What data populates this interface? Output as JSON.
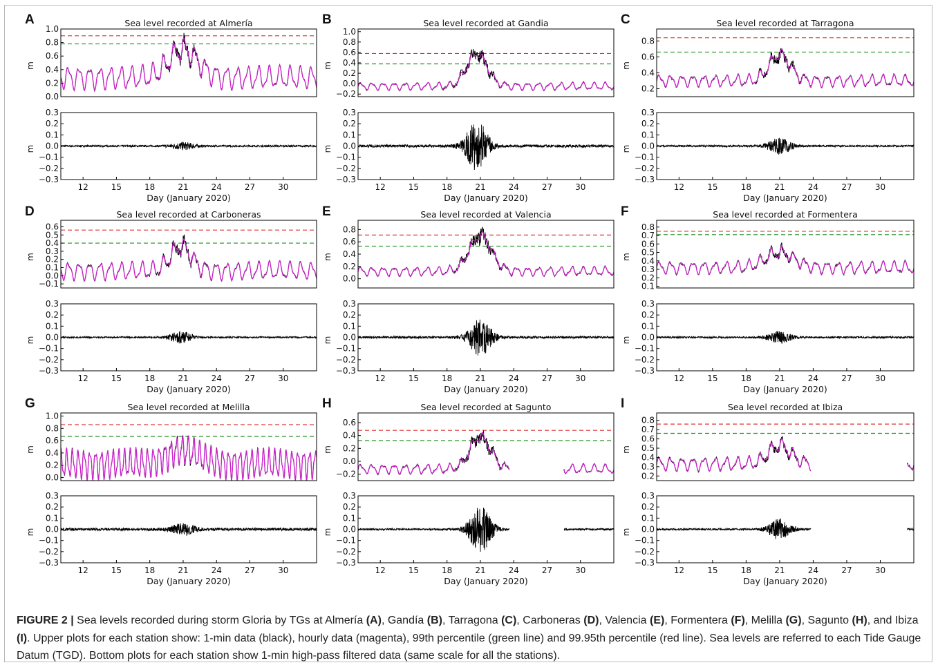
{
  "figure": {
    "caption": {
      "label": "FIGURE 2 |",
      "segments": [
        {
          "t": " Sea levels recorded during storm Gloria by TGs at Almería "
        },
        {
          "t": "(A)",
          "b": true
        },
        {
          "t": ", Gandía "
        },
        {
          "t": "(B)",
          "b": true
        },
        {
          "t": ", Tarragona "
        },
        {
          "t": "(C)",
          "b": true
        },
        {
          "t": ", Carboneras "
        },
        {
          "t": "(D)",
          "b": true
        },
        {
          "t": ", Valencia "
        },
        {
          "t": "(E)",
          "b": true
        },
        {
          "t": ", Formentera "
        },
        {
          "t": "(F)",
          "b": true
        },
        {
          "t": ", Melilla "
        },
        {
          "t": "(G)",
          "b": true
        },
        {
          "t": ", Sagunto "
        },
        {
          "t": "(H)",
          "b": true
        },
        {
          "t": ", and Ibiza "
        },
        {
          "t": "(I)",
          "b": true
        },
        {
          "t": ". Upper plots for each station show: 1-min data (black), hourly data (magenta), 99th percentile (green line) and 99.95th percentile (red line). Sea levels are referred to each Tide Gauge Datum (TGD). Bottom plots for each station show 1-min high-pass filtered data (same scale for all the stations)."
        }
      ]
    },
    "colors": {
      "raw": "#000000",
      "hourly": "#cc22cc",
      "p99": "#1f8f1f",
      "p9995": "#e03030"
    }
  },
  "chart_data": [
    {
      "panel": "A",
      "type": "line",
      "title": "Sea level recorded at Almería",
      "ylabel": "m",
      "yticks": [
        "1.0",
        "0.8",
        "0.6",
        "0.4",
        "0.2",
        "0.0"
      ],
      "ylim": [
        0,
        1.0
      ],
      "xlim": [
        10,
        33
      ],
      "p99": 0.78,
      "p9995": 0.9,
      "base": 0.28,
      "amp": 0.14,
      "period": 0.95,
      "surge_peak": 0.42,
      "surge_center": 21,
      "surge_width": 1.8,
      "gap": null,
      "filtered": {
        "ylabel": "m",
        "yticks": [
          "0.3",
          "0.2",
          "0.1",
          "0.0",
          "−0.1",
          "−0.2",
          "−0.3"
        ],
        "ylim": [
          -0.3,
          0.3
        ],
        "noise": 0.008,
        "storm_amp": 0.03,
        "xticks": [
          "12",
          "15",
          "18",
          "21",
          "24",
          "27",
          "30"
        ],
        "xlabel": "Day (January 2020)"
      }
    },
    {
      "panel": "B",
      "type": "line",
      "title": "Sea level recorded at Gandia",
      "ylabel": "m",
      "yticks": [
        "1.0",
        "0.8",
        "0.6",
        "0.4",
        "0.2",
        "0.0",
        "−0.2"
      ],
      "ylim": [
        -0.25,
        1.05
      ],
      "xlim": [
        10,
        33
      ],
      "p99": 0.38,
      "p9995": 0.58,
      "base": -0.05,
      "amp": 0.06,
      "period": 1.0,
      "surge_peak": 0.62,
      "surge_center": 20.7,
      "surge_width": 1.3,
      "gap": null,
      "filtered": {
        "ylabel": "m",
        "yticks": [
          "0.3",
          "0.2",
          "0.1",
          "0.0",
          "−0.1",
          "−0.2",
          "−0.3"
        ],
        "ylim": [
          -0.3,
          0.3
        ],
        "noise": 0.012,
        "storm_amp": 0.22,
        "xticks": [
          "12",
          "15",
          "18",
          "21",
          "24",
          "27",
          "30"
        ],
        "xlabel": "Day (January 2020)"
      }
    },
    {
      "panel": "C",
      "type": "line",
      "title": "Sea level recorded at Tarragona",
      "ylabel": "m",
      "yticks": [
        "0.8",
        "0.6",
        "0.4",
        "0.2"
      ],
      "ylim": [
        0.1,
        0.95
      ],
      "xlim": [
        10,
        33
      ],
      "p99": 0.66,
      "p9995": 0.84,
      "base": 0.3,
      "amp": 0.06,
      "period": 1.0,
      "surge_peak": 0.33,
      "surge_center": 21,
      "surge_width": 1.3,
      "gap": null,
      "filtered": {
        "ylabel": "m",
        "yticks": [
          "0.3",
          "0.2",
          "0.1",
          "0.0",
          "−0.1",
          "−0.2",
          "−0.3"
        ],
        "ylim": [
          -0.3,
          0.3
        ],
        "noise": 0.008,
        "storm_amp": 0.07,
        "xticks": [
          "12",
          "15",
          "18",
          "21",
          "24",
          "27",
          "30"
        ],
        "xlabel": "Day (January 2020)"
      }
    },
    {
      "panel": "D",
      "type": "line",
      "title": "Sea level recorded at Carboneras",
      "ylabel": "m",
      "yticks": [
        "0.6",
        "0.5",
        "0.4",
        "0.3",
        "0.2",
        "0.1",
        "0.0",
        "−0.1"
      ],
      "ylim": [
        -0.15,
        0.68
      ],
      "xlim": [
        10,
        33
      ],
      "p99": 0.4,
      "p9995": 0.56,
      "base": 0.06,
      "amp": 0.09,
      "period": 0.95,
      "surge_peak": 0.3,
      "surge_center": 20.8,
      "surge_width": 1.3,
      "gap": null,
      "filtered": {
        "ylabel": "m",
        "yticks": [
          "0.3",
          "0.2",
          "0.1",
          "0.0",
          "−0.1",
          "−0.2",
          "−0.3"
        ],
        "ylim": [
          -0.3,
          0.3
        ],
        "noise": 0.007,
        "storm_amp": 0.05,
        "xticks": [
          "12",
          "15",
          "18",
          "21",
          "24",
          "27",
          "30"
        ],
        "xlabel": "Day (January 2020)"
      }
    },
    {
      "panel": "E",
      "type": "line",
      "title": "Sea level recorded at Valencia",
      "ylabel": "m",
      "yticks": [
        "0.8",
        "0.6",
        "0.4",
        "0.2",
        "0.0"
      ],
      "ylim": [
        -0.15,
        0.95
      ],
      "xlim": [
        10,
        33
      ],
      "p99": 0.53,
      "p9995": 0.71,
      "base": 0.12,
      "amp": 0.06,
      "period": 1.0,
      "surge_peak": 0.58,
      "surge_center": 21,
      "surge_width": 1.4,
      "gap": null,
      "filtered": {
        "ylabel": "m",
        "yticks": [
          "0.3",
          "0.2",
          "0.1",
          "0.0",
          "−0.1",
          "−0.2",
          "−0.3"
        ],
        "ylim": [
          -0.3,
          0.3
        ],
        "noise": 0.01,
        "storm_amp": 0.16,
        "xticks": [
          "12",
          "15",
          "18",
          "21",
          "24",
          "27",
          "30"
        ],
        "xlabel": "Day (January 2020)"
      }
    },
    {
      "panel": "F",
      "type": "line",
      "title": "Sea level recorded at Formentera",
      "ylabel": "m",
      "yticks": [
        "0.8",
        "0.7",
        "0.6",
        "0.5",
        "0.4",
        "0.3",
        "0.2",
        "0.1"
      ],
      "ylim": [
        0.08,
        0.88
      ],
      "xlim": [
        10,
        33
      ],
      "p99": 0.71,
      "p9995": 0.75,
      "base": 0.32,
      "amp": 0.06,
      "period": 1.0,
      "surge_peak": 0.18,
      "surge_center": 21,
      "surge_width": 1.8,
      "gap": null,
      "filtered": {
        "ylabel": "m",
        "yticks": [
          "0.3",
          "0.2",
          "0.1",
          "0.0",
          "−0.1",
          "−0.2",
          "−0.3"
        ],
        "ylim": [
          -0.3,
          0.3
        ],
        "noise": 0.008,
        "storm_amp": 0.05,
        "xticks": [
          "12",
          "15",
          "18",
          "21",
          "24",
          "27",
          "30"
        ],
        "xlabel": "Day (January 2020)"
      }
    },
    {
      "panel": "G",
      "type": "line",
      "title": "Sea level recorded at Melilla",
      "ylabel": "m",
      "yticks": [
        "1.0",
        "0.8",
        "0.6",
        "0.4",
        "0.2",
        "0.0"
      ],
      "ylim": [
        -0.05,
        1.05
      ],
      "xlim": [
        10,
        33
      ],
      "p99": 0.67,
      "p9995": 0.86,
      "base": 0.22,
      "amp": 0.2,
      "period": 0.52,
      "surge_peak": 0.22,
      "surge_center": 21,
      "surge_width": 2.0,
      "gap": null,
      "filtered": {
        "ylabel": "m",
        "yticks": [
          "0.3",
          "0.2",
          "0.1",
          "0.0",
          "−0.1",
          "−0.2",
          "−0.3"
        ],
        "ylim": [
          -0.3,
          0.3
        ],
        "noise": 0.012,
        "storm_amp": 0.05,
        "xticks": [
          "12",
          "15",
          "18",
          "21",
          "24",
          "27",
          "30"
        ],
        "xlabel": "Day (January 2020)"
      }
    },
    {
      "panel": "H",
      "type": "line",
      "title": "Sea level recorded at Sagunto",
      "ylabel": "m",
      "yticks": [
        "0.6",
        "0.4",
        "0.2",
        "0.0",
        "−0.2"
      ],
      "ylim": [
        -0.3,
        0.75
      ],
      "xlim": [
        10,
        33
      ],
      "p99": 0.32,
      "p9995": 0.48,
      "base": -0.12,
      "amp": 0.06,
      "period": 1.0,
      "surge_peak": 0.5,
      "surge_center": 21,
      "surge_width": 1.3,
      "gap": [
        23.6,
        28.5
      ],
      "filtered": {
        "ylabel": "m",
        "yticks": [
          "0.3",
          "0.2",
          "0.1",
          "0.0",
          "−0.1",
          "−0.2",
          "−0.3"
        ],
        "ylim": [
          -0.3,
          0.3
        ],
        "noise": 0.008,
        "storm_amp": 0.2,
        "xticks": [
          "12",
          "15",
          "18",
          "21",
          "24",
          "27",
          "30"
        ],
        "xlabel": "Day (January 2020)"
      }
    },
    {
      "panel": "I",
      "type": "line",
      "title": "Sea level recorded at Ibiza",
      "ylabel": "m",
      "yticks": [
        "0.8",
        "0.7",
        "0.6",
        "0.5",
        "0.4",
        "0.3",
        "0.2"
      ],
      "ylim": [
        0.15,
        0.88
      ],
      "xlim": [
        10,
        33
      ],
      "p99": 0.66,
      "p9995": 0.76,
      "base": 0.33,
      "amp": 0.06,
      "period": 1.0,
      "surge_peak": 0.2,
      "surge_center": 21,
      "surge_width": 1.4,
      "gap": [
        23.8,
        32.4
      ],
      "filtered": {
        "ylabel": "m",
        "yticks": [
          "0.3",
          "0.2",
          "0.1",
          "0.0",
          "−0.1",
          "−0.2",
          "−0.3"
        ],
        "ylim": [
          -0.3,
          0.3
        ],
        "noise": 0.008,
        "storm_amp": 0.09,
        "xticks": [
          "12",
          "15",
          "18",
          "21",
          "24",
          "27",
          "30"
        ],
        "xlabel": "Day (January 2020)"
      }
    }
  ]
}
